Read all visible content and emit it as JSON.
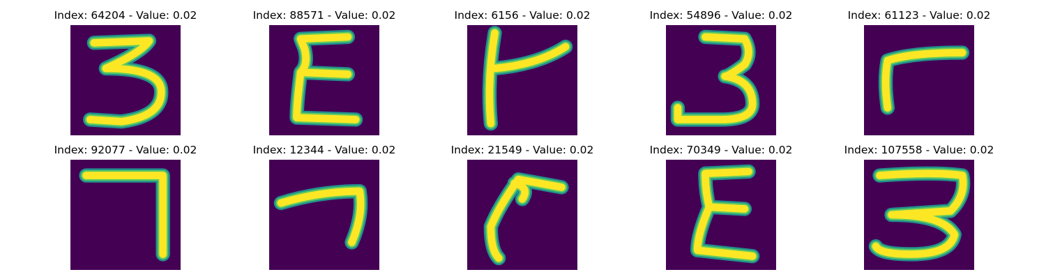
{
  "colors": {
    "background": "#440154",
    "stroke_edge": "#21918c",
    "stroke_mid": "#5ec962",
    "stroke_core": "#fde725"
  },
  "panels": [
    {
      "title": "Index: 64204 - Value: 0.02",
      "glyph": "digit-3"
    },
    {
      "title": "Index: 88571 - Value: 0.02",
      "glyph": "epsilon"
    },
    {
      "title": "Index: 6156 - Value: 0.02",
      "glyph": "k-shape"
    },
    {
      "title": "Index: 54896 - Value: 0.02",
      "glyph": "digit-3"
    },
    {
      "title": "Index: 61123 - Value: 0.02",
      "glyph": "hook"
    },
    {
      "title": "Index: 92077 - Value: 0.02",
      "glyph": "digit-7"
    },
    {
      "title": "Index: 12344 - Value: 0.02",
      "glyph": "digit-7"
    },
    {
      "title": "Index: 21549 - Value: 0.02",
      "glyph": "hook"
    },
    {
      "title": "Index: 70349 - Value: 0.02",
      "glyph": "epsilon"
    },
    {
      "title": "Index: 107558 - Value: 0.02",
      "glyph": "digit-3"
    }
  ]
}
